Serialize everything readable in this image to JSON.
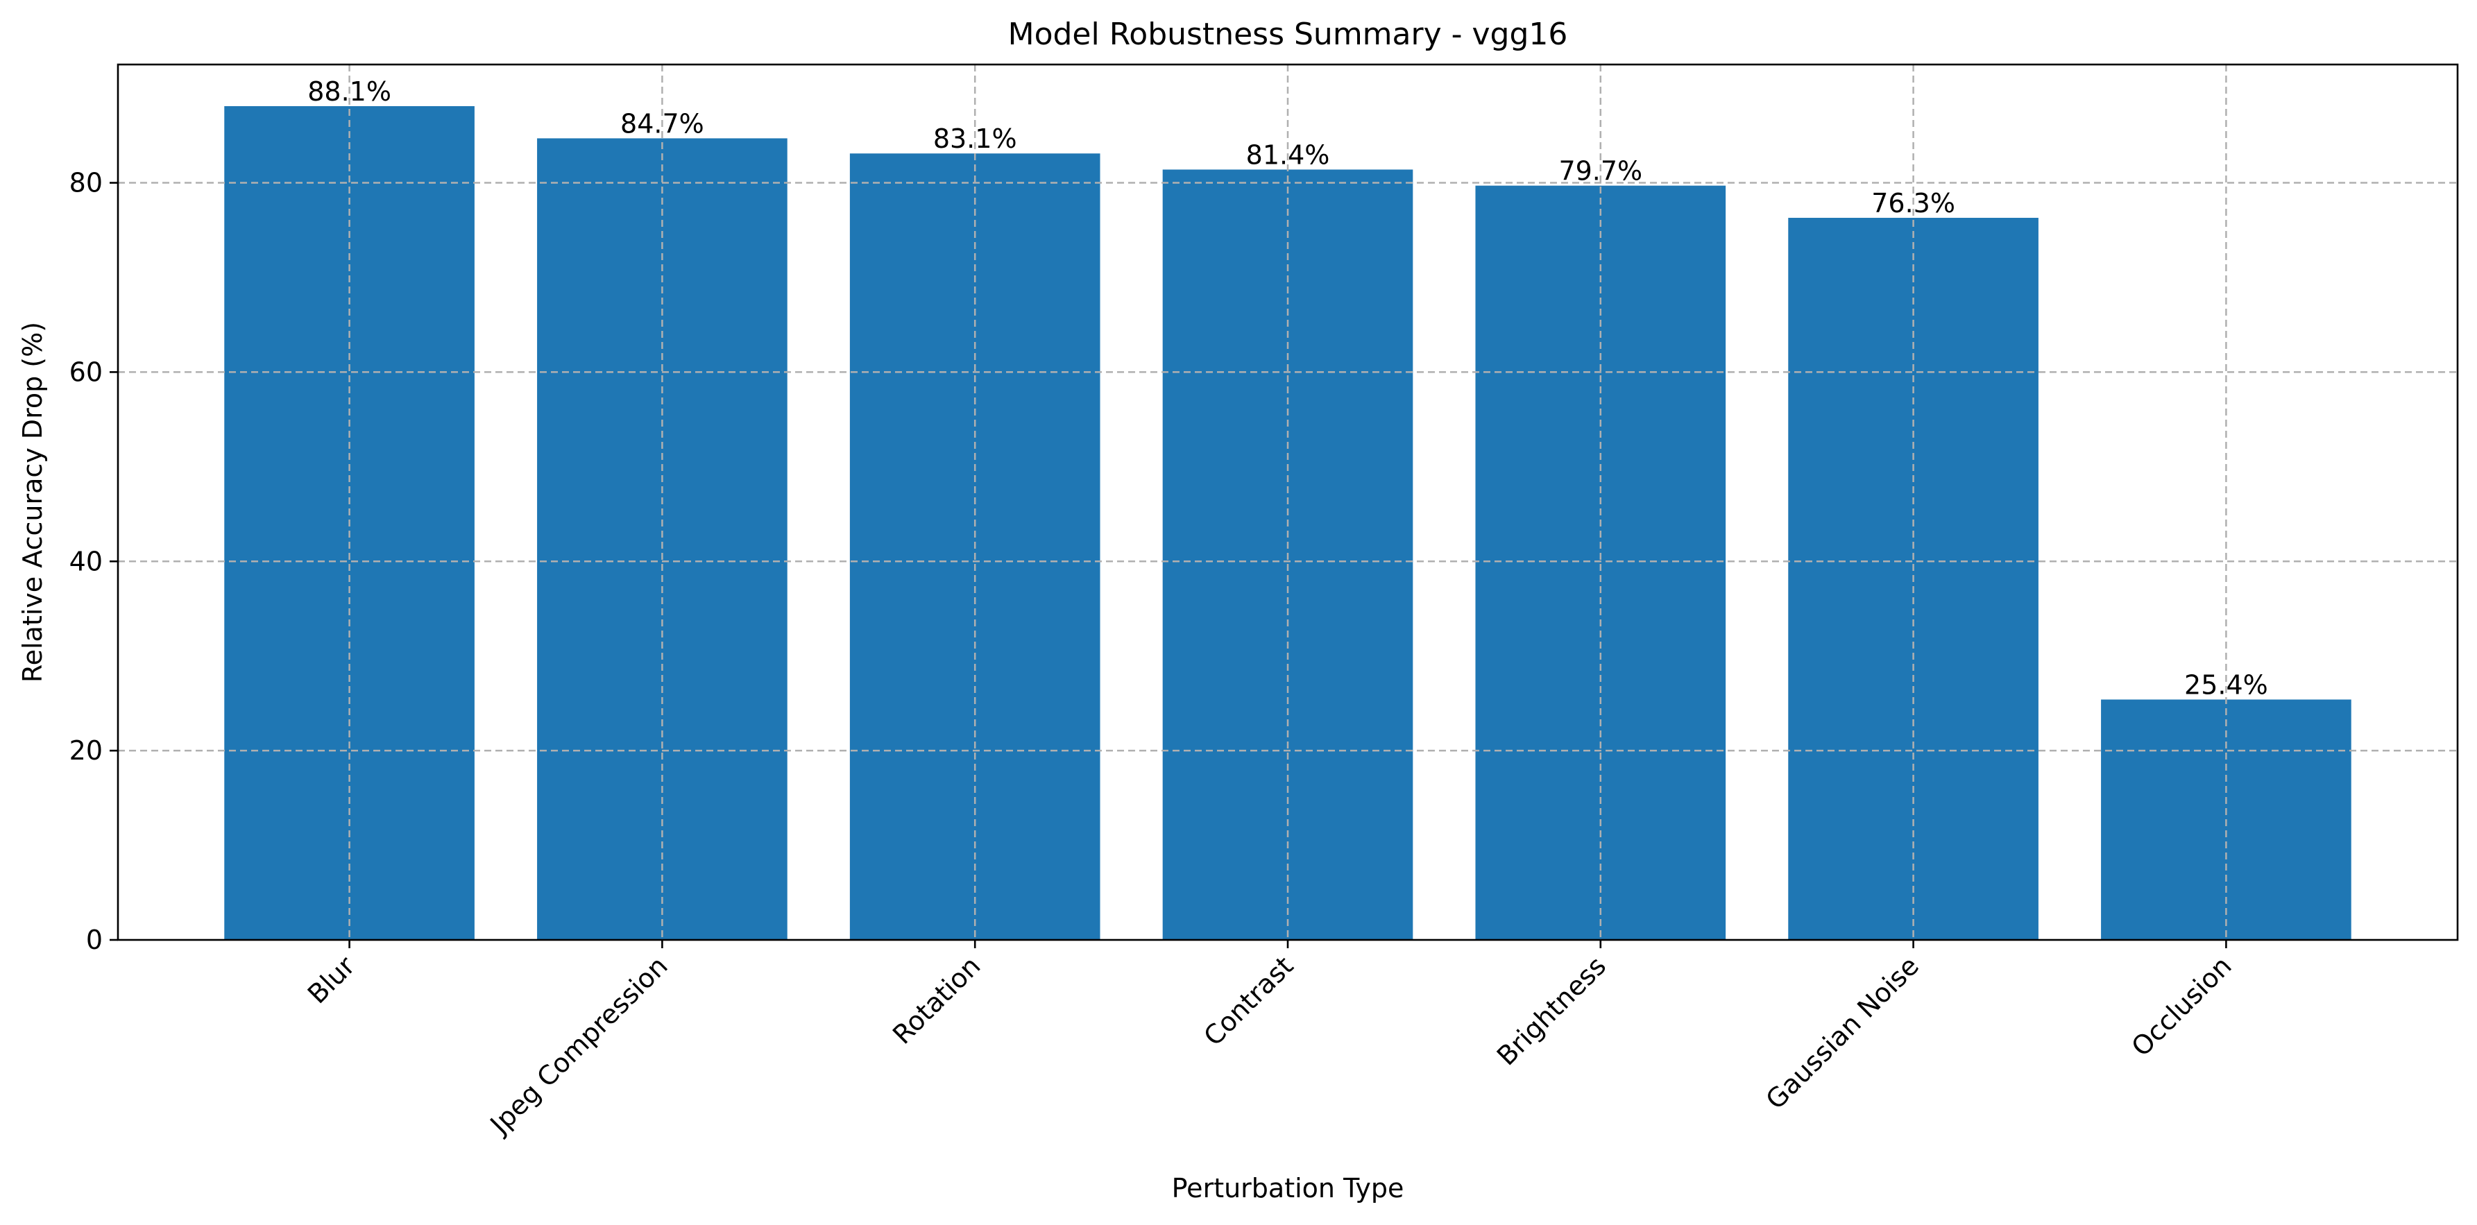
{
  "chart_data": {
    "type": "bar",
    "title": "Model Robustness Summary - vgg16",
    "xlabel": "Perturbation Type",
    "ylabel": "Relative Accuracy Drop (%)",
    "categories": [
      "Blur",
      "Jpeg Compression",
      "Rotation",
      "Contrast",
      "Brightness",
      "Gaussian Noise",
      "Occlusion"
    ],
    "values": [
      88.1,
      84.7,
      83.1,
      81.4,
      79.7,
      76.3,
      25.4
    ],
    "data_labels": [
      "88.1%",
      "84.7%",
      "83.1%",
      "81.4%",
      "79.7%",
      "76.3%",
      "25.4%"
    ],
    "ylim": [
      0,
      92.5
    ],
    "yticks": [
      0,
      20,
      40,
      60,
      80
    ],
    "grid": true,
    "bar_color": "#1f77b4",
    "grid_color": "#b0b0b0"
  }
}
